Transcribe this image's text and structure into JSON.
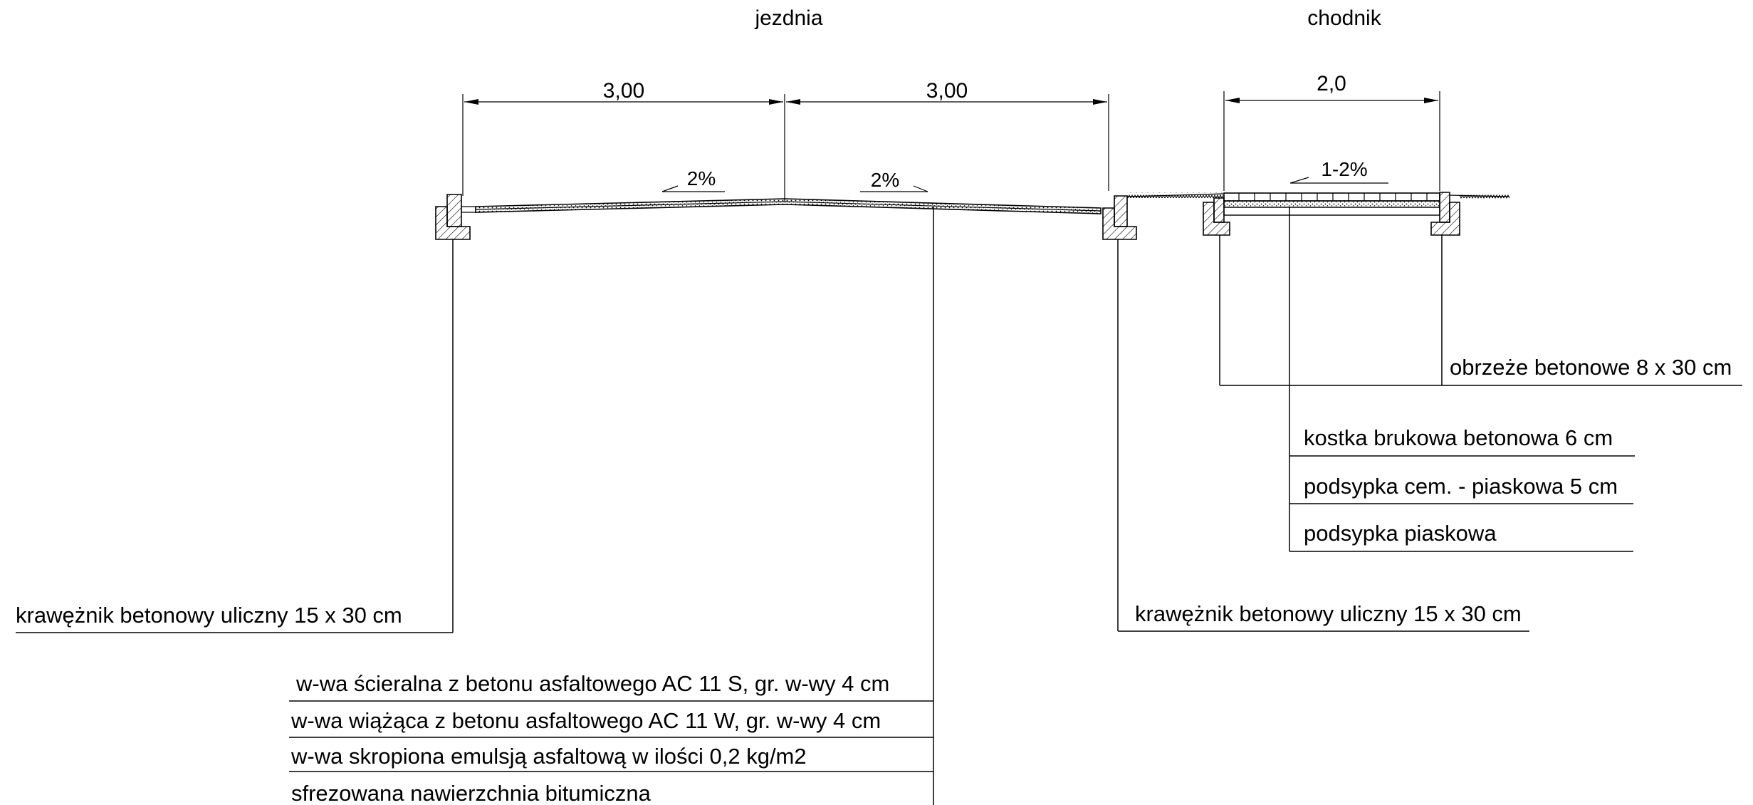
{
  "headers": {
    "roadway": "jezdnia",
    "sidewalk": "chodnik"
  },
  "dimensions": {
    "left_lane": "3,00",
    "right_lane": "3,00",
    "sidewalk_width": "2,0"
  },
  "slopes": {
    "left_lane": "2%",
    "right_lane": "2%",
    "sidewalk": "1-2%"
  },
  "labels": {
    "curb_left": "krawężnik betonowy uliczny 15 x 30 cm",
    "curb_right": "krawężnik betonowy uliczny 15 x 30 cm",
    "edging": "obrzeże betonowe 8 x 30 cm",
    "sidewalk_layers": [
      "kostka brukowa betonowa 6 cm",
      "podsypka cem. - piaskowa 5 cm",
      "podsypka piaskowa"
    ],
    "road_layers": [
      "w-wa ścieralna z betonu asfaltowego AC 11 S, gr. w-wy 4 cm",
      "w-wa wiążąca z betonu asfaltowego AC 11 W, gr. w-wy 4 cm",
      "w-wa skropiona emulsją asfaltową w ilości 0,2 kg/m2",
      "sfrezowana nawierzchnia bitumiczna"
    ]
  }
}
